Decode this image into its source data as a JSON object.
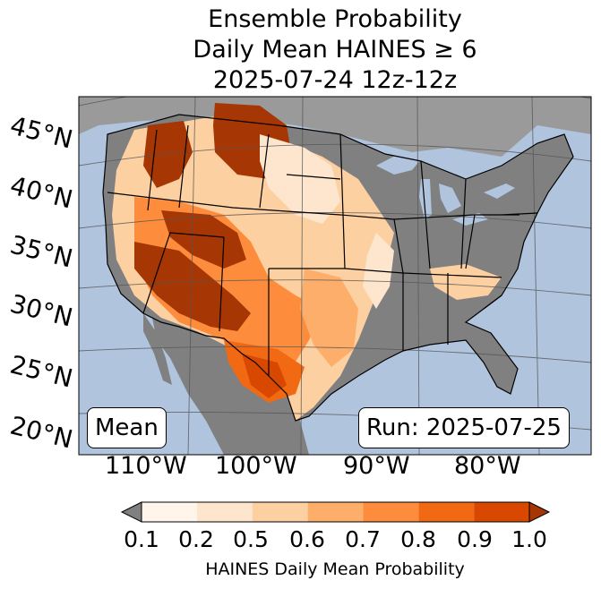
{
  "title": {
    "line1": "Ensemble Probability",
    "line2": "Daily Mean HAINES ≥ 6",
    "line3": "2025-07-24 12z-12z"
  },
  "map": {
    "lat_labels": [
      "45°N",
      "40°N",
      "35°N",
      "30°N",
      "25°N",
      "20°N"
    ],
    "lon_labels": [
      "110°W",
      "100°W",
      "90°W",
      "80°W"
    ],
    "stat_box": "Mean",
    "run_box": "Run: 2025-07-25",
    "colors": {
      "ocean": "#b0c4de",
      "land_low": "#808080",
      "lakes": "#b0c4de"
    }
  },
  "colorbar": {
    "label": "HAINES Daily Mean Probability",
    "ticks": [
      "0.1",
      "0.2",
      "0.5",
      "0.6",
      "0.7",
      "0.8",
      "0.9",
      "1.0"
    ],
    "colors": [
      "#fff5eb",
      "#fee6ce",
      "#fdd0a2",
      "#fdae6b",
      "#fd8d3c",
      "#f16913",
      "#d94801",
      "#a63603",
      "#7f2704"
    ],
    "under_color": "#808080"
  }
}
